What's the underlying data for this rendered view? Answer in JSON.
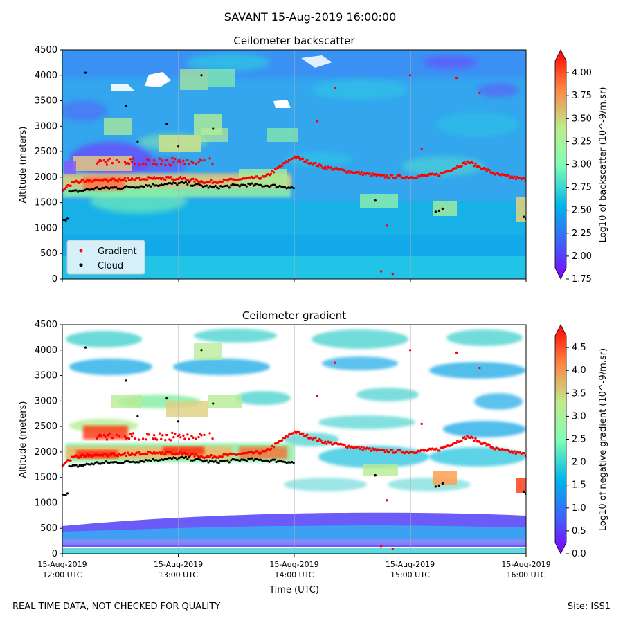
{
  "suptitle": "SAVANT 15-Aug-2019 16:00:00",
  "footer_left": "REAL TIME DATA, NOT CHECKED FOR QUALITY",
  "footer_right": "Site: ISS1",
  "colors": {
    "gradient_marker": "#ff0000",
    "cloud_marker": "#000000",
    "legend_bg": "#d6f0fa",
    "gridline": "#b0b0b0"
  },
  "chart_data": [
    {
      "type": "heatmap",
      "title": "Ceilometer backscatter",
      "ylabel": "Altitude (meters)",
      "xlabel": "",
      "ylim": [
        0,
        4500
      ],
      "yticks": [
        "0",
        "500",
        "1000",
        "1500",
        "2000",
        "2500",
        "3000",
        "3500",
        "4000",
        "4500"
      ],
      "x_range_utc": [
        "12:00",
        "16:00"
      ],
      "grid": "vertical lines at each hour",
      "colormap": "rainbow",
      "colorbar_label": "Log10 of backscatter (10^-9/m.sr)",
      "colorbar_ticks": [
        "1.75",
        "2.00",
        "2.25",
        "2.50",
        "2.75",
        "3.00",
        "3.25",
        "3.50",
        "3.75",
        "4.00"
      ],
      "colorbar_range": [
        1.75,
        4.25
      ],
      "legend": {
        "placement": "lower-left",
        "entries": [
          "Gradient",
          "Cloud"
        ]
      },
      "gradient_layer_m": [
        {
          "t": 0.0,
          "alt": 1750
        },
        {
          "t": 0.1,
          "alt": 1900
        },
        {
          "t": 0.25,
          "alt": 1930
        },
        {
          "t": 0.5,
          "alt": 1950
        },
        {
          "t": 0.75,
          "alt": 1970
        },
        {
          "t": 1.0,
          "alt": 1980
        },
        {
          "t": 1.25,
          "alt": 1900
        },
        {
          "t": 1.5,
          "alt": 1950
        },
        {
          "t": 1.75,
          "alt": 2000
        },
        {
          "t": 2.0,
          "alt": 2400
        },
        {
          "t": 2.25,
          "alt": 2200
        },
        {
          "t": 2.5,
          "alt": 2100
        },
        {
          "t": 2.75,
          "alt": 2020
        },
        {
          "t": 3.0,
          "alt": 2000
        },
        {
          "t": 3.25,
          "alt": 2050
        },
        {
          "t": 3.5,
          "alt": 2300
        },
        {
          "t": 3.75,
          "alt": 2050
        },
        {
          "t": 4.0,
          "alt": 1950
        }
      ],
      "cloud_base_m": [
        {
          "t": 0.05,
          "alt": 1700
        },
        {
          "t": 0.3,
          "alt": 1780
        },
        {
          "t": 0.55,
          "alt": 1800
        },
        {
          "t": 0.8,
          "alt": 1850
        },
        {
          "t": 1.05,
          "alt": 1880
        },
        {
          "t": 1.3,
          "alt": 1800
        },
        {
          "t": 1.6,
          "alt": 1850
        },
        {
          "t": 1.9,
          "alt": 1820
        },
        {
          "t": 3.25,
          "alt": 1340
        },
        {
          "t": 4.0,
          "alt": 1180
        }
      ]
    },
    {
      "type": "heatmap",
      "title": "Ceilometer gradient",
      "ylabel": "Altitude (meters)",
      "xlabel": "Time (UTC)",
      "ylim": [
        0,
        4500
      ],
      "yticks": [
        "0",
        "500",
        "1000",
        "1500",
        "2000",
        "2500",
        "3000",
        "3500",
        "4000",
        "4500"
      ],
      "xtick_dates": [
        "15-Aug-2019",
        "15-Aug-2019",
        "15-Aug-2019",
        "15-Aug-2019",
        "15-Aug-2019"
      ],
      "xtick_times": [
        "12:00 UTC",
        "13:00 UTC",
        "14:00 UTC",
        "15:00 UTC",
        "16:00 UTC"
      ],
      "grid": "vertical lines at each hour",
      "colormap": "rainbow",
      "colorbar_label": "Log10 of negative gradient (10^-9/m.sr)",
      "colorbar_ticks": [
        "0.0",
        "0.5",
        "1.0",
        "1.5",
        "2.0",
        "2.5",
        "3.0",
        "3.5",
        "4.0",
        "4.5"
      ],
      "colorbar_range": [
        0.0,
        5.0
      ]
    }
  ]
}
